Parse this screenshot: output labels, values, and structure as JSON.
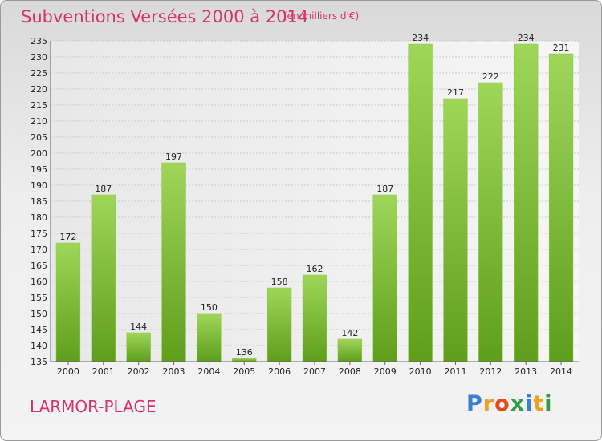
{
  "title": "Subventions Versées 2000 à 2014",
  "subtitle": "(en milliers d'€)",
  "town": "LARMOR-PLAGE",
  "logo": {
    "letters": [
      "P",
      "r",
      "o",
      "x",
      "i",
      "t",
      "i"
    ],
    "colors": [
      "#3a7fd5",
      "#f0a020",
      "#e64a19",
      "#2e9e44",
      "#3a7fd5",
      "#f0a020",
      "#2e9e44"
    ]
  },
  "colors": {
    "bar_light": "#9fd65a",
    "bar_dark": "#5f9e1c",
    "text_accent": "#d6336c"
  },
  "chart_data": {
    "type": "bar",
    "categories": [
      "2000",
      "2001",
      "2002",
      "2003",
      "2004",
      "2005",
      "2006",
      "2007",
      "2008",
      "2009",
      "2010",
      "2011",
      "2012",
      "2013",
      "2014"
    ],
    "values": [
      172,
      187,
      144,
      197,
      150,
      136,
      158,
      162,
      142,
      187,
      234,
      217,
      222,
      234,
      231
    ],
    "ylim": [
      135,
      235
    ],
    "yticks": [
      135,
      140,
      145,
      150,
      155,
      160,
      165,
      170,
      175,
      180,
      185,
      190,
      195,
      200,
      205,
      210,
      215,
      220,
      225,
      230,
      235
    ],
    "grid": true
  }
}
